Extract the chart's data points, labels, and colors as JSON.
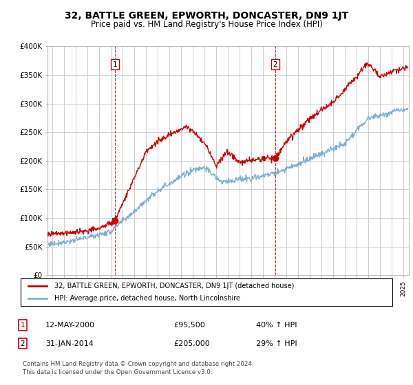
{
  "title": "32, BATTLE GREEN, EPWORTH, DONCASTER, DN9 1JT",
  "subtitle": "Price paid vs. HM Land Registry's House Price Index (HPI)",
  "sale1_date": "12-MAY-2000",
  "sale1_price": 95500,
  "sale1_hpi": "40% ↑ HPI",
  "sale1_label": "1",
  "sale2_date": "31-JAN-2014",
  "sale2_price": 205000,
  "sale2_hpi": "29% ↑ HPI",
  "sale2_label": "2",
  "legend_line1": "32, BATTLE GREEN, EPWORTH, DONCASTER, DN9 1JT (detached house)",
  "legend_line2": "HPI: Average price, detached house, North Lincolnshire",
  "footer": "Contains HM Land Registry data © Crown copyright and database right 2024.\nThis data is licensed under the Open Government Licence v3.0.",
  "price_line_color": "#cc0000",
  "hpi_line_color": "#7bafd4",
  "vline_color": "#cc0000",
  "ylim": [
    0,
    400000
  ],
  "yticks": [
    0,
    50000,
    100000,
    150000,
    200000,
    250000,
    300000,
    350000,
    400000
  ],
  "background_color": "#ffffff",
  "grid_color": "#cccccc",
  "sale1_x": 2000.36,
  "sale2_x": 2014.08,
  "sale1_y": 95500,
  "sale2_y": 205000,
  "xlim_left": 1994.6,
  "xlim_right": 2025.5
}
